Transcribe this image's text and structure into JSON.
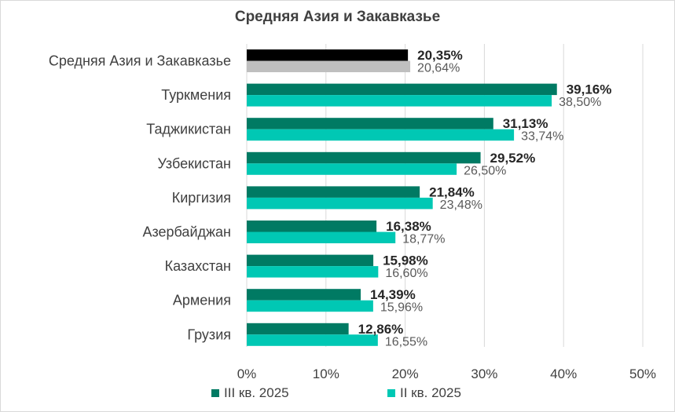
{
  "colors": {
    "series1_bars": [
      "#000000",
      "#007a63",
      "#007a63",
      "#007a63",
      "#007a63",
      "#007a63",
      "#007a63",
      "#007a63",
      "#007a63"
    ],
    "series2_bars": [
      "#bfbfbf",
      "#00c8b4",
      "#00c8b4",
      "#00c8b4",
      "#00c8b4",
      "#00c8b4",
      "#00c8b4",
      "#00c8b4",
      "#00c8b4"
    ],
    "legend_series1": "#007a63",
    "legend_series2": "#00c8b4",
    "grid": "#d9d9d9",
    "text": "#404040"
  },
  "chart_data": {
    "type": "bar",
    "orientation": "horizontal",
    "title": "Средняя Азия и Закавказье",
    "categories": [
      "Средняя Азия и Закавказье",
      "Туркмения",
      "Таджикистан",
      "Узбекистан",
      "Киргизия",
      "Азербайджан",
      "Казахстан",
      "Армения",
      "Грузия"
    ],
    "series": [
      {
        "name": "III кв. 2025",
        "values": [
          20.35,
          39.16,
          31.13,
          29.52,
          21.84,
          16.38,
          15.98,
          14.39,
          12.86
        ],
        "labels": [
          "20,35%",
          "39,16%",
          "31,13%",
          "29,52%",
          "21,84%",
          "16,38%",
          "15,98%",
          "14,39%",
          "12,86%"
        ]
      },
      {
        "name": "II кв. 2025",
        "values": [
          20.64,
          38.5,
          33.74,
          26.5,
          23.48,
          18.77,
          16.6,
          15.96,
          16.55
        ],
        "labels": [
          "20,64%",
          "38,50%",
          "33,74%",
          "26,50%",
          "23,48%",
          "18,77%",
          "16,60%",
          "15,96%",
          "16,55%"
        ]
      }
    ],
    "xlim": [
      0,
      50
    ],
    "xticks": [
      0,
      10,
      20,
      30,
      40,
      50
    ],
    "xtick_labels": [
      "0%",
      "10%",
      "20%",
      "30%",
      "40%",
      "50%"
    ],
    "grid": true,
    "legend_position": "bottom"
  }
}
